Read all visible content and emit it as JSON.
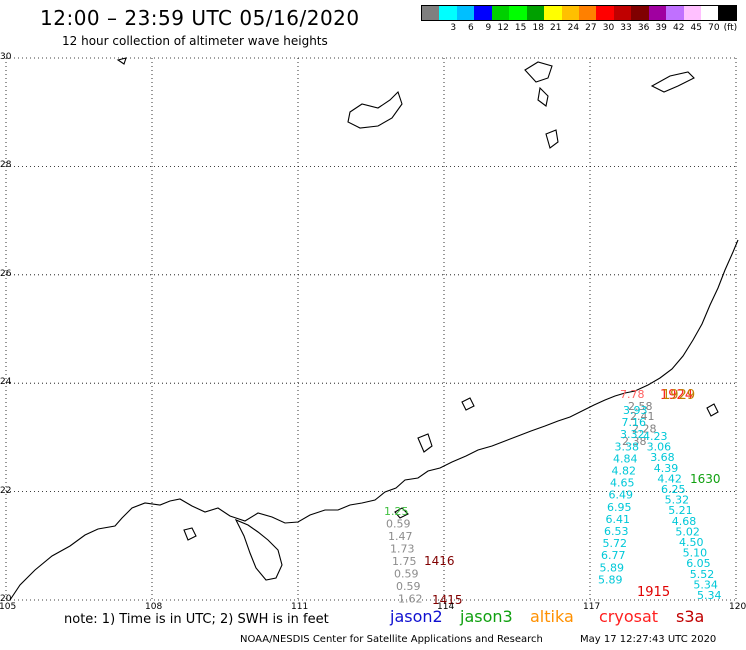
{
  "header": {
    "title": "12:00 – 23:59 UTC 05/16/2020",
    "subtitle": "12 hour collection of altimeter wave heights"
  },
  "colorbar": {
    "unit": "(ft)",
    "colors": [
      "#7f7f7f",
      "#00ffff",
      "#00bfff",
      "#0000ff",
      "#00d000",
      "#00ff00",
      "#00a000",
      "#ffff00",
      "#ffc000",
      "#ff8000",
      "#ff0000",
      "#c00000",
      "#800000",
      "#a000a0",
      "#c070ff",
      "#ffc0ff",
      "#ffffff",
      "#000000"
    ],
    "ticks": [
      "3",
      "6",
      "9",
      "12",
      "15",
      "18",
      "21",
      "24",
      "27",
      "30",
      "33",
      "36",
      "39",
      "42",
      "45",
      "70"
    ]
  },
  "axes": {
    "lat_labels": [
      "30",
      "28",
      "26",
      "24",
      "22",
      "20"
    ],
    "lon_labels": [
      "105",
      "108",
      "111",
      "114",
      "117",
      "120"
    ]
  },
  "passes": {
    "altika_west": {
      "color": "#8c8c8c",
      "values": [
        "1.25",
        "0.59",
        "1.47",
        "1.73",
        "1.75",
        "0.59",
        "0.59",
        "1.62"
      ]
    },
    "s3a_west_labels": [
      "1416",
      "1415"
    ],
    "cryosat_values_top": [
      "7.78",
      "2.58"
    ],
    "east_gray": [
      "2.41",
      "2.28",
      "2.38"
    ],
    "east_cyan_left": [
      "3.93",
      "7.16",
      "3.32",
      "3.38",
      "4.84",
      "4.82",
      "4.65",
      "6.49",
      "6.95",
      "6.41",
      "6.53",
      "5.72",
      "6.77",
      "5.89",
      "5.89"
    ],
    "east_cyan_right": [
      "4.23",
      "3.06",
      "3.68",
      "4.39",
      "4.42",
      "6.25",
      "5.32",
      "5.21",
      "4.68",
      "5.02",
      "4.50",
      "5.10",
      "6.05",
      "5.52",
      "5.34",
      "5.34"
    ],
    "east_labels": [
      "1924",
      "1929",
      "1630",
      "1915"
    ]
  },
  "footer": {
    "note": "note: 1) Time is in UTC; 2) SWH is in feet",
    "legend": [
      {
        "name": "jason2",
        "color": "#1010d0"
      },
      {
        "name": "jason3",
        "color": "#10a010"
      },
      {
        "name": "altika",
        "color": "#ff9000"
      },
      {
        "name": "cryosat",
        "color": "#ff2020"
      },
      {
        "name": "s3a",
        "color": "#c00000"
      }
    ],
    "credit": "NOAA/NESDIS Center for Satellite Applications and Research",
    "timestamp": "May 17 12:27:43 UTC 2020"
  }
}
